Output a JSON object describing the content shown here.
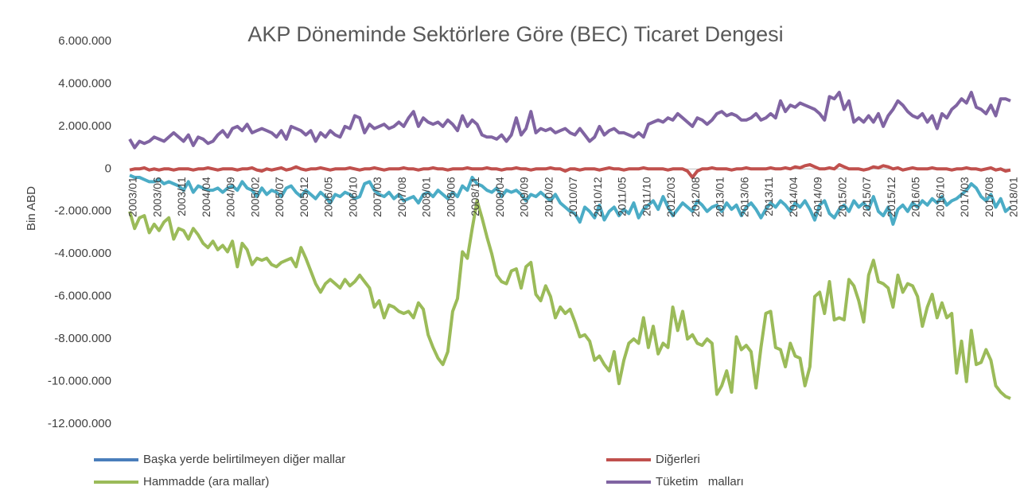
{
  "chart_data": {
    "type": "line",
    "title": "AKP Döneminde Sektörlere Göre (BEC) Ticaret Dengesi",
    "y_label": "Bin ABD",
    "ylim": [
      -12000000,
      6000000
    ],
    "yticks": [
      {
        "value": -12000000,
        "label": "-12.000.000"
      },
      {
        "value": -10000000,
        "label": "-10.000.000"
      },
      {
        "value": -8000000,
        "label": "-8.000.000"
      },
      {
        "value": -6000000,
        "label": "-6.000.000"
      },
      {
        "value": -4000000,
        "label": "-4.000.000"
      },
      {
        "value": -2000000,
        "label": "-2.000.000"
      },
      0,
      {
        "value": 2000000,
        "label": "2.000.000"
      },
      {
        "value": 4000000,
        "label": "4.000.000"
      },
      {
        "value": 6000000,
        "label": "6.000.000"
      }
    ],
    "grid": false,
    "legend": "bottom",
    "x": [
      "2003/01",
      null,
      null,
      null,
      null,
      "2003/06",
      null,
      null,
      null,
      null,
      "2003/11",
      null,
      null,
      null,
      null,
      "2004/04",
      null,
      null,
      null,
      null,
      "2004/09",
      null,
      null,
      null,
      null,
      "2005/02",
      null,
      null,
      null,
      null,
      "2005/07",
      null,
      null,
      null,
      null,
      "2005/12",
      null,
      null,
      null,
      null,
      "2006/05",
      null,
      null,
      null,
      null,
      "2006/10",
      null,
      null,
      null,
      null,
      "2007/03",
      null,
      null,
      null,
      null,
      "2007/08",
      null,
      null,
      null,
      null,
      "2008/01",
      null,
      null,
      null,
      null,
      "2008/06",
      null,
      null,
      null,
      null,
      "2008/11",
      null,
      null,
      null,
      null,
      "2009/04",
      null,
      null,
      null,
      null,
      "2009/09",
      null,
      null,
      null,
      null,
      "2010/02",
      null,
      null,
      null,
      null,
      "2010/07",
      null,
      null,
      null,
      null,
      "2010/12",
      null,
      null,
      null,
      null,
      "2011/05",
      null,
      null,
      null,
      null,
      "2011/10",
      null,
      null,
      null,
      null,
      "2012/03",
      null,
      null,
      null,
      null,
      "2012/08",
      null,
      null,
      null,
      null,
      "2013/01",
      null,
      null,
      null,
      null,
      "2013/06",
      null,
      null,
      null,
      null,
      "2013/11",
      null,
      null,
      null,
      null,
      "2014/04",
      null,
      null,
      null,
      null,
      "2014/09",
      null,
      null,
      null,
      null,
      "2015/02",
      null,
      null,
      null,
      null,
      "2015/07",
      null,
      null,
      null,
      null,
      "2015/12",
      null,
      null,
      null,
      null,
      "2016/05",
      null,
      null,
      null,
      null,
      "2016/10",
      null,
      null,
      null,
      null,
      "2017/03",
      null,
      null,
      null,
      null,
      "2017/08",
      null,
      null,
      null,
      null,
      "2018/01"
    ],
    "series": [
      {
        "name": "Başka yerde belirtilmeyen diğer mallar",
        "color": "#4bacc6",
        "legend_color": "#4a7ebb",
        "values": [
          -300000.0,
          -400000.0,
          -400000.0,
          -500000.0,
          -600000.0,
          -600000.0,
          -500000.0,
          -700000.0,
          -600000.0,
          -700000.0,
          -800000.0,
          -1000000.0,
          -600000.0,
          -1100000.0,
          -800000.0,
          -900000.0,
          -1000000.0,
          -1000000.0,
          -900000.0,
          -1100000.0,
          -900000.0,
          -800000.0,
          -1000000.0,
          -600000.0,
          -900000.0,
          -1000000.0,
          -1300000.0,
          -900000.0,
          -1200000.0,
          -1000000.0,
          -1100000.0,
          -1300000.0,
          -900000.0,
          -800000.0,
          -1100000.0,
          -1300000.0,
          -1000000.0,
          -1200000.0,
          -1400000.0,
          -1100000.0,
          -1300000.0,
          -1600000.0,
          -1200000.0,
          -1300000.0,
          -1100000.0,
          -1200000.0,
          -1400000.0,
          -1300000.0,
          -700000.0,
          -600000.0,
          -1000000.0,
          -1200000.0,
          -1300000.0,
          -1100000.0,
          -1400000.0,
          -1200000.0,
          -1500000.0,
          -1400000.0,
          -1300000.0,
          -1600000.0,
          -1200000.0,
          -1100000.0,
          -1300000.0,
          -1000000.0,
          -1200000.0,
          -1400000.0,
          -1100000.0,
          -1300000.0,
          -800000.0,
          -1000000.0,
          -400000.0,
          -700000.0,
          -800000.0,
          -1000000.0,
          -1100000.0,
          -900000.0,
          -1300000.0,
          -1000000.0,
          -1100000.0,
          -1000000.0,
          -1200000.0,
          -1500000.0,
          -1200000.0,
          -1300000.0,
          -1100000.0,
          -1300000.0,
          -1500000.0,
          -1200000.0,
          -1600000.0,
          -1800000.0,
          -2000000.0,
          -2100000.0,
          -2500000.0,
          -1800000.0,
          -2000000.0,
          -2300000.0,
          -1700000.0,
          -2400000.0,
          -2000000.0,
          -1800000.0,
          -2200000.0,
          -1900000.0,
          -2100000.0,
          -1600000.0,
          -2300000.0,
          -1900000.0,
          -1700000.0,
          -1500000.0,
          -1900000.0,
          -1300000.0,
          -1800000.0,
          -2200000.0,
          -1900000.0,
          -1600000.0,
          -1800000.0,
          -2000000.0,
          -1500000.0,
          -1700000.0,
          -2000000.0,
          -1800000.0,
          -1700000.0,
          -2000000.0,
          -1600000.0,
          -1900000.0,
          -1700000.0,
          -2200000.0,
          -1800000.0,
          -1600000.0,
          -1900000.0,
          -2300000.0,
          -1900000.0,
          -1600000.0,
          -1800000.0,
          -1500000.0,
          -1700000.0,
          -2000000.0,
          -1600000.0,
          -1800000.0,
          -1500000.0,
          -1900000.0,
          -2400000.0,
          -1700000.0,
          -1500000.0,
          -2100000.0,
          -2300000.0,
          -1900000.0,
          -1700000.0,
          -2000000.0,
          -1500000.0,
          -1800000.0,
          -1600000.0,
          -1900000.0,
          -1300000.0,
          -2000000.0,
          -2200000.0,
          -1800000.0,
          -2600000.0,
          -1900000.0,
          -1700000.0,
          -2000000.0,
          -1600000.0,
          -1800000.0,
          -1500000.0,
          -1700000.0,
          -1400000.0,
          -1600000.0,
          -1300000.0,
          -1700000.0,
          -1500000.0,
          -1400000.0,
          -1200000.0,
          -1000000.0,
          -700000.0,
          -900000.0,
          -1300000.0,
          -1500000.0,
          -1200000.0,
          -1800000.0,
          -1400000.0,
          -2000000.0,
          -1800000.0
        ]
      },
      {
        "name": "Diğerleri",
        "color": "#c0504d",
        "values": [
          -50000.0,
          0,
          0,
          50000.0,
          -50000.0,
          0,
          -50000.0,
          0,
          0,
          -50000.0,
          0,
          0,
          0,
          -50000.0,
          0,
          0,
          50000.0,
          0,
          -50000.0,
          0,
          0,
          0,
          -50000.0,
          0,
          0,
          50000.0,
          -50000.0,
          -100000.0,
          0,
          -50000.0,
          0,
          50000.0,
          -50000.0,
          0,
          100000.0,
          0,
          -50000.0,
          0,
          0,
          50000.0,
          0,
          -50000.0,
          0,
          0,
          0,
          50000.0,
          0,
          -50000.0,
          0,
          0,
          50000.0,
          0,
          -50000.0,
          0,
          0,
          0,
          50000.0,
          0,
          0,
          -50000.0,
          0,
          0,
          50000.0,
          0,
          0,
          -50000.0,
          0,
          0,
          0,
          50000.0,
          0,
          0,
          0,
          50000.0,
          0,
          0,
          -50000.0,
          0,
          0,
          50000.0,
          0,
          0,
          -50000.0,
          0,
          0,
          0,
          50000.0,
          0,
          0,
          -100000.0,
          0,
          0,
          -50000.0,
          0,
          0,
          0,
          -50000.0,
          0,
          50000.0,
          0,
          0,
          -50000.0,
          0,
          0,
          0,
          50000.0,
          0,
          0,
          0,
          0,
          -50000.0,
          0,
          0,
          0,
          -100000.0,
          -400000.0,
          -100000.0,
          0,
          0,
          50000.0,
          0,
          0,
          0,
          -50000.0,
          0,
          0,
          50000.0,
          0,
          0,
          0,
          0,
          50000.0,
          0,
          0,
          50000.0,
          0,
          100000.0,
          50000.0,
          150000.0,
          200000.0,
          100000.0,
          0,
          0,
          50000.0,
          0,
          200000.0,
          100000.0,
          0,
          0,
          0,
          -50000.0,
          0,
          100000.0,
          50000.0,
          150000.0,
          100000.0,
          0,
          50000.0,
          -50000.0,
          0,
          50000.0,
          0,
          0,
          0,
          50000.0,
          0,
          0,
          0,
          -50000.0,
          0,
          0,
          50000.0,
          0,
          0,
          -50000.0,
          0,
          50000.0,
          -50000.0,
          0,
          -100000.0,
          -50000.0
        ]
      },
      {
        "name": "Hammadde (ara mallar)",
        "color": "#9bbb59",
        "values": [
          -2000000.0,
          -2800000.0,
          -2300000.0,
          -2200000.0,
          -3000000.0,
          -2600000.0,
          -2900000.0,
          -2500000.0,
          -2300000.0,
          -3300000.0,
          -2800000.0,
          -2900000.0,
          -3300000.0,
          -2800000.0,
          -3100000.0,
          -3500000.0,
          -3700000.0,
          -3400000.0,
          -3800000.0,
          -3600000.0,
          -3900000.0,
          -3400000.0,
          -4600000.0,
          -3500000.0,
          -3800000.0,
          -4500000.0,
          -4200000.0,
          -4300000.0,
          -4200000.0,
          -4500000.0,
          -4600000.0,
          -4400000.0,
          -4300000.0,
          -4200000.0,
          -4600000.0,
          -3700000.0,
          -4200000.0,
          -4800000.0,
          -5400000.0,
          -5800000.0,
          -5400000.0,
          -5200000.0,
          -5400000.0,
          -5600000.0,
          -5200000.0,
          -5500000.0,
          -5300000.0,
          -5000000.0,
          -5300000.0,
          -5600000.0,
          -6500000.0,
          -6200000.0,
          -7000000.0,
          -6400000.0,
          -6500000.0,
          -6700000.0,
          -6800000.0,
          -6700000.0,
          -7000000.0,
          -6300000.0,
          -6600000.0,
          -7800000.0,
          -8400000.0,
          -8900000.0,
          -9200000.0,
          -8600000.0,
          -6700000.0,
          -6100000.0,
          -3900000.0,
          -4200000.0,
          -2800000.0,
          -1500000.0,
          -2300000.0,
          -3200000.0,
          -4000000.0,
          -5000000.0,
          -5300000.0,
          -5400000.0,
          -4800000.0,
          -4700000.0,
          -5600000.0,
          -4600000.0,
          -4400000.0,
          -5900000.0,
          -6200000.0,
          -5500000.0,
          -6000000.0,
          -7000000.0,
          -6500000.0,
          -6800000.0,
          -6600000.0,
          -7200000.0,
          -7900000.0,
          -7800000.0,
          -8100000.0,
          -9000000.0,
          -8800000.0,
          -9200000.0,
          -9500000.0,
          -8600000.0,
          -10100000.0,
          -9000000.0,
          -8200000.0,
          -8000000.0,
          -8200000.0,
          -7000000.0,
          -8400000.0,
          -7400000.0,
          -8700000.0,
          -8200000.0,
          -8400000.0,
          -6500000.0,
          -7600000.0,
          -6700000.0,
          -8000000.0,
          -7800000.0,
          -8200000.0,
          -8300000.0,
          -8000000.0,
          -8200000.0,
          -10600000.0,
          -10200000.0,
          -9500000.0,
          -10500000.0,
          -7900000.0,
          -8500000.0,
          -8300000.0,
          -8600000.0,
          -10300000.0,
          -8400000.0,
          -6800000.0,
          -6700000.0,
          -8400000.0,
          -8500000.0,
          -9300000.0,
          -8200000.0,
          -8800000.0,
          -8900000.0,
          -10200000.0,
          -9300000.0,
          -6000000.0,
          -5800000.0,
          -6800000.0,
          -5300000.0,
          -7100000.0,
          -7000000.0,
          -7100000.0,
          -5200000.0,
          -5500000.0,
          -6200000.0,
          -7200000.0,
          -5000000.0,
          -4300000.0,
          -5300000.0,
          -5400000.0,
          -5600000.0,
          -6500000.0,
          -5000000.0,
          -5800000.0,
          -5400000.0,
          -5500000.0,
          -6000000.0,
          -7400000.0,
          -6500000.0,
          -5900000.0,
          -7000000.0,
          -6300000.0,
          -7000000.0,
          -6800000.0,
          -9600000.0,
          -8100000.0,
          -10000000.0,
          -7600000.0,
          -9200000.0,
          -9100000.0,
          -8500000.0,
          -9000000.0,
          -10200000.0,
          -10500000.0,
          -10700000.0,
          -10800000.0
        ]
      },
      {
        "name": "Tüketim   malları",
        "color": "#8064a2",
        "values": [
          1400000.0,
          1000000.0,
          1300000.0,
          1200000.0,
          1300000.0,
          1500000.0,
          1400000.0,
          1300000.0,
          1500000.0,
          1700000.0,
          1500000.0,
          1300000.0,
          1600000.0,
          1100000.0,
          1500000.0,
          1400000.0,
          1200000.0,
          1300000.0,
          1600000.0,
          1800000.0,
          1500000.0,
          1900000.0,
          2000000.0,
          1800000.0,
          2100000.0,
          1700000.0,
          1800000.0,
          1900000.0,
          1800000.0,
          1700000.0,
          1500000.0,
          1800000.0,
          1400000.0,
          2000000.0,
          1900000.0,
          1800000.0,
          1600000.0,
          1800000.0,
          1300000.0,
          1700000.0,
          1500000.0,
          1800000.0,
          1600000.0,
          1500000.0,
          2000000.0,
          1900000.0,
          2500000.0,
          2400000.0,
          1700000.0,
          2100000.0,
          1900000.0,
          2000000.0,
          2100000.0,
          1900000.0,
          2000000.0,
          2200000.0,
          2000000.0,
          2400000.0,
          2700000.0,
          2000000.0,
          2400000.0,
          2200000.0,
          2100000.0,
          2200000.0,
          2000000.0,
          2300000.0,
          2100000.0,
          1800000.0,
          2500000.0,
          2000000.0,
          2300000.0,
          2100000.0,
          1600000.0,
          1500000.0,
          1500000.0,
          1400000.0,
          1600000.0,
          1300000.0,
          1600000.0,
          2400000.0,
          1600000.0,
          1900000.0,
          2700000.0,
          1700000.0,
          1900000.0,
          1800000.0,
          1900000.0,
          1700000.0,
          1800000.0,
          1900000.0,
          1700000.0,
          1600000.0,
          1900000.0,
          1600000.0,
          1300000.0,
          1500000.0,
          2000000.0,
          1600000.0,
          1800000.0,
          1900000.0,
          1700000.0,
          1700000.0,
          1600000.0,
          1500000.0,
          1700000.0,
          1500000.0,
          2100000.0,
          2200000.0,
          2300000.0,
          2200000.0,
          2400000.0,
          2300000.0,
          2600000.0,
          2400000.0,
          2200000.0,
          2000000.0,
          2400000.0,
          2300000.0,
          2100000.0,
          2300000.0,
          2600000.0,
          2700000.0,
          2500000.0,
          2600000.0,
          2500000.0,
          2300000.0,
          2300000.0,
          2400000.0,
          2600000.0,
          2300000.0,
          2400000.0,
          2600000.0,
          2400000.0,
          3200000.0,
          2700000.0,
          3000000.0,
          2900000.0,
          3100000.0,
          3000000.0,
          2900000.0,
          2800000.0,
          2600000.0,
          2300000.0,
          3400000.0,
          3300000.0,
          3600000.0,
          2800000.0,
          3200000.0,
          2200000.0,
          2400000.0,
          2200000.0,
          2500000.0,
          2200000.0,
          2600000.0,
          2000000.0,
          2500000.0,
          2800000.0,
          3200000.0,
          3000000.0,
          2700000.0,
          2500000.0,
          2400000.0,
          2600000.0,
          2200000.0,
          2500000.0,
          1900000.0,
          2600000.0,
          2400000.0,
          2800000.0,
          3000000.0,
          3300000.0,
          3100000.0,
          3600000.0,
          2900000.0,
          2800000.0,
          2600000.0,
          3000000.0,
          2500000.0,
          3300000.0,
          3300000.0,
          3200000.0
        ]
      }
    ]
  }
}
